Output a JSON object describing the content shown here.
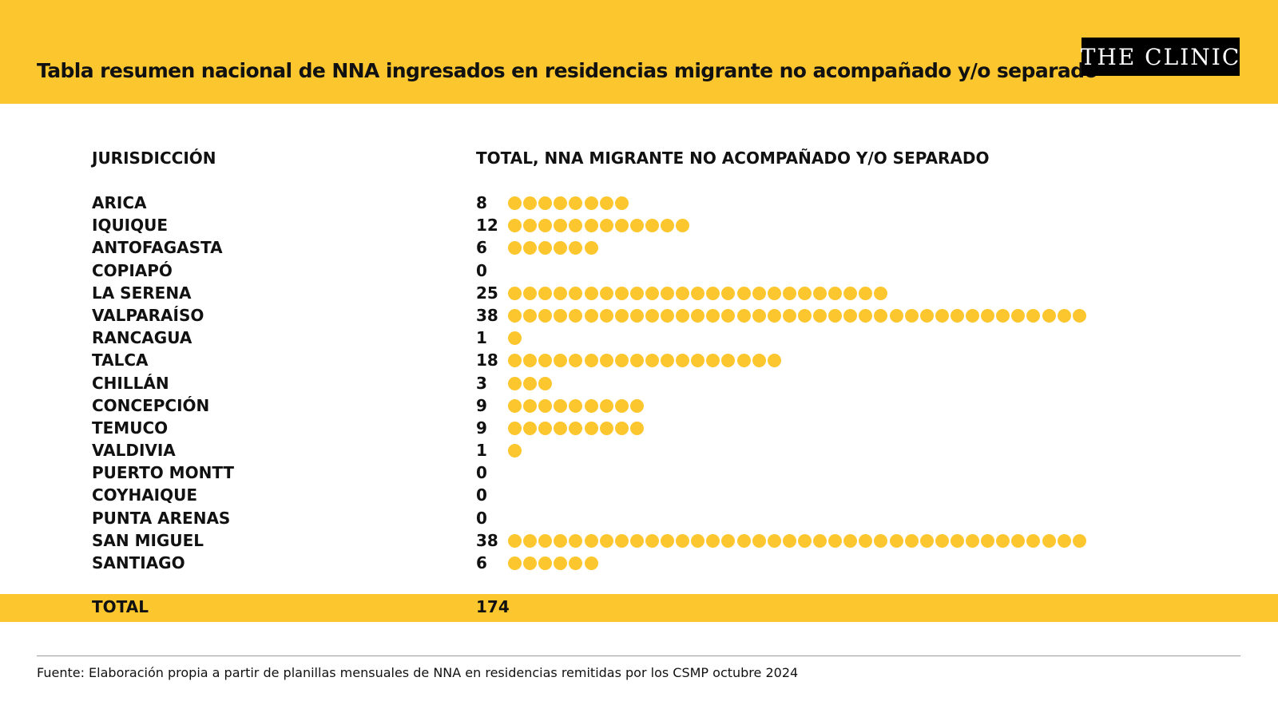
{
  "header": {
    "title": "Tabla resumen nacional de NNA ingresados en residencias migrante no acompañado y/o separado",
    "logo": "THE CLINIC",
    "background_color": "#fcc72e"
  },
  "chart_data": {
    "type": "table",
    "columns": [
      "JURISDICCIÓN",
      "TOTAL, NNA MIGRANTE NO ACOMPAÑADO Y/O SEPARADO"
    ],
    "dot_color": "#fcc72e",
    "rows": [
      {
        "name": "ARICA",
        "value": 8
      },
      {
        "name": "IQUIQUE",
        "value": 12
      },
      {
        "name": "ANTOFAGASTA",
        "value": 6
      },
      {
        "name": "COPIAPÓ",
        "value": 0
      },
      {
        "name": "LA SERENA",
        "value": 25
      },
      {
        "name": "VALPARAÍSO",
        "value": 38
      },
      {
        "name": "RANCAGUA",
        "value": 1
      },
      {
        "name": "TALCA",
        "value": 18
      },
      {
        "name": "CHILLÁN",
        "value": 3
      },
      {
        "name": "CONCEPCIÓN",
        "value": 9
      },
      {
        "name": "TEMUCO",
        "value": 9
      },
      {
        "name": "VALDIVIA",
        "value": 1
      },
      {
        "name": "PUERTO MONTT",
        "value": 0
      },
      {
        "name": "COYHAIQUE",
        "value": 0
      },
      {
        "name": "PUNTA ARENAS",
        "value": 0
      },
      {
        "name": "SAN MIGUEL",
        "value": 38
      },
      {
        "name": "SANTIAGO",
        "value": 6
      }
    ],
    "total": {
      "label": "TOTAL",
      "value": 174
    }
  },
  "footer": {
    "source": "Fuente: Elaboración propia a partir de planillas mensuales de NNA en residencias remitidas por los CSMP octubre 2024"
  }
}
